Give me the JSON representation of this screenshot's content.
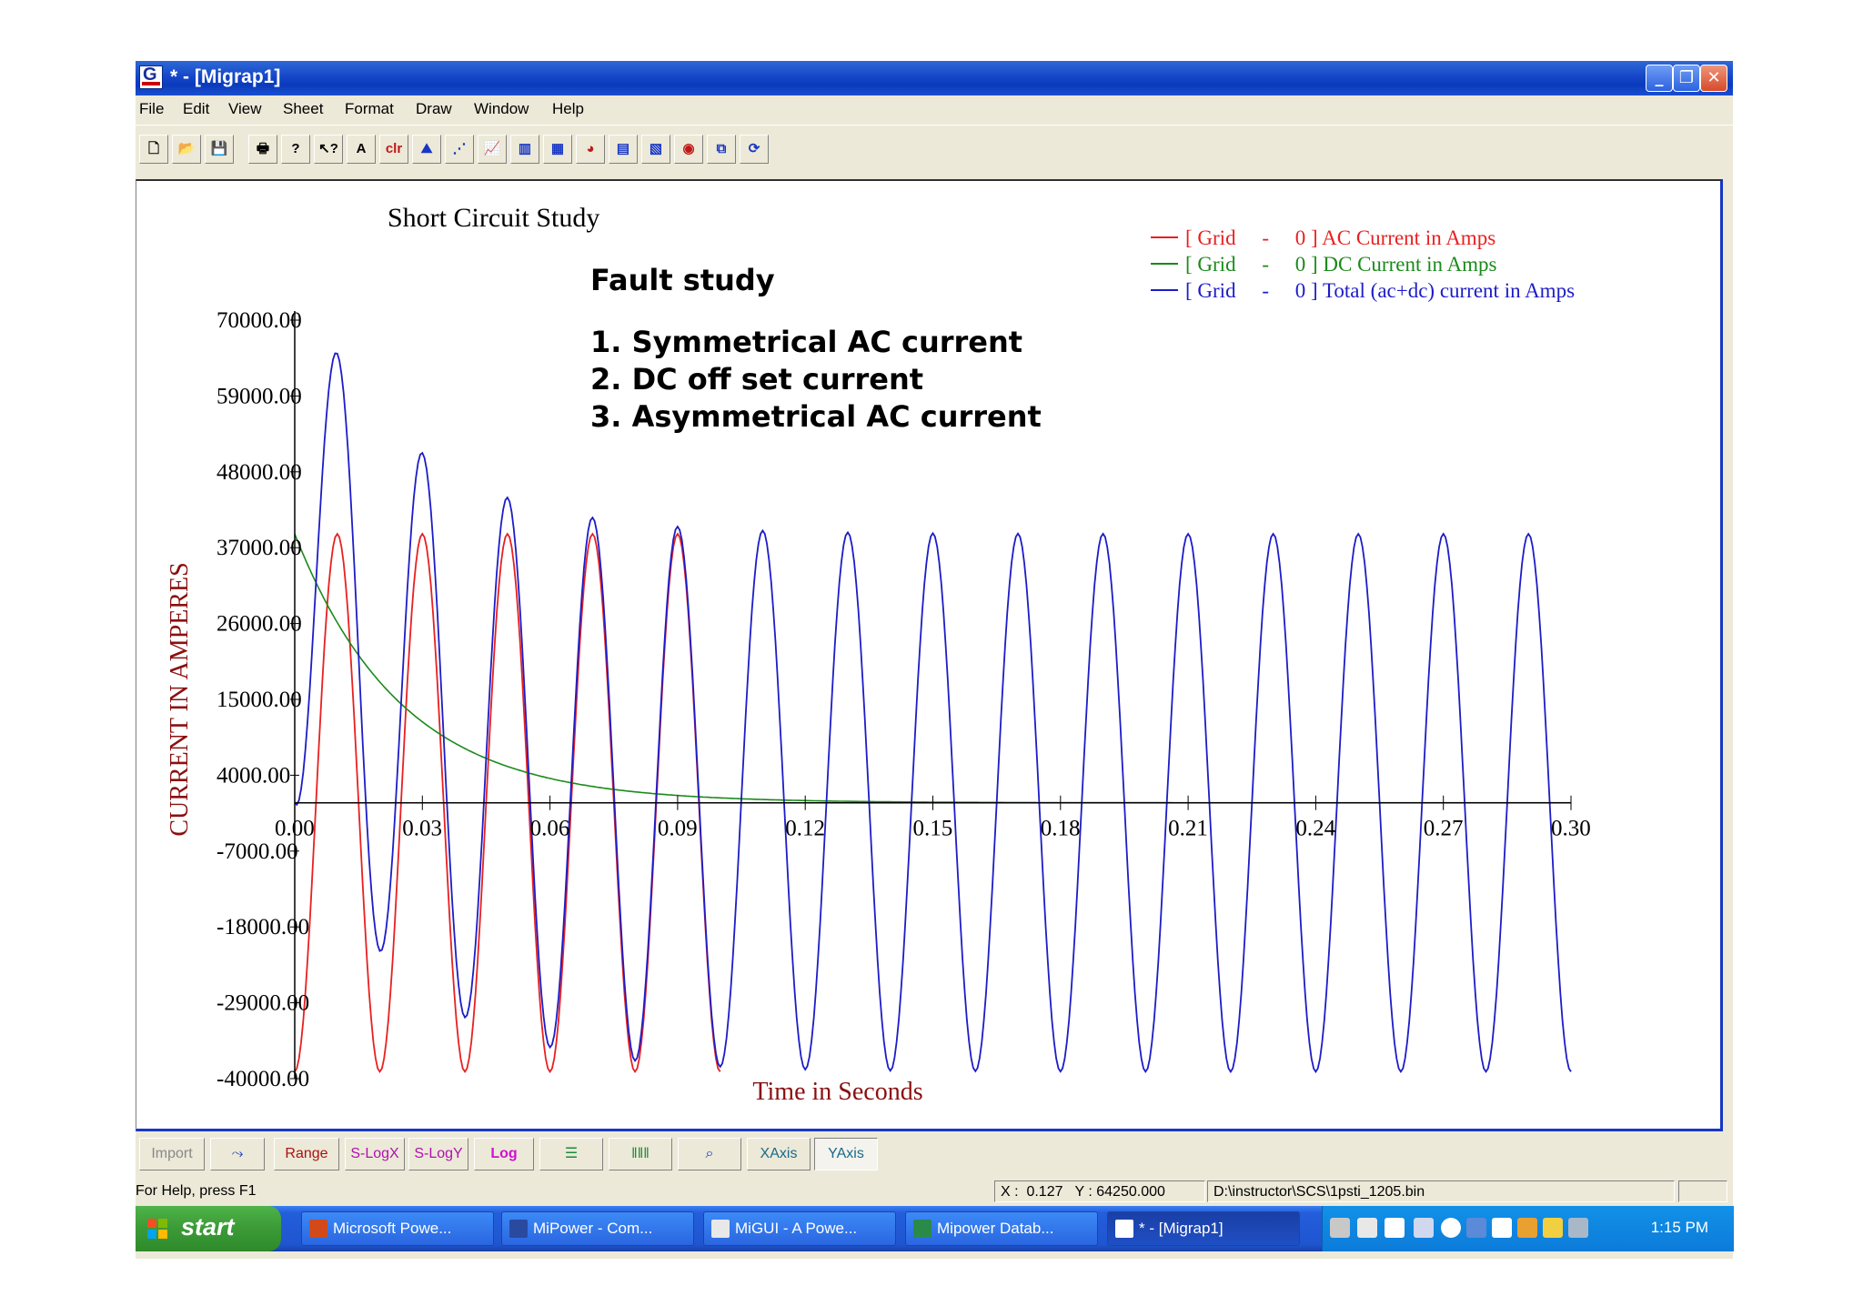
{
  "window": {
    "title": "* - [Migrap1]",
    "minimize": "_",
    "restore": "❐",
    "close": "✕"
  },
  "menu": [
    "File",
    "Edit",
    "View",
    "Sheet",
    "Format",
    "Draw",
    "Window",
    "Help"
  ],
  "toolbar": {
    "text_tool": "A",
    "clear_tool": "clr"
  },
  "annotation": {
    "heading": "Fault study",
    "items": [
      "1. Symmetrical AC current",
      "2. DC off set current",
      "3. Asymmetrical AC current"
    ]
  },
  "chart_data": {
    "type": "line",
    "title": "Short Circuit Study",
    "xlabel": "Time in Seconds",
    "ylabel": "CURRENT IN AMPERES",
    "xlim": [
      0,
      0.3
    ],
    "ylim": [
      -40000,
      70000
    ],
    "x_ticks": [
      "0.00",
      "0.03",
      "0.06",
      "0.09",
      "0.12",
      "0.15",
      "0.18",
      "0.21",
      "0.24",
      "0.27",
      "0.30"
    ],
    "y_ticks": [
      "70000.00",
      "59000.00",
      "48000.00",
      "37000.00",
      "26000.00",
      "15000.00",
      "4000.00",
      "-7000.00",
      "-18000.00",
      "-29000.00",
      "-40000.00"
    ],
    "grid": false,
    "legend_position": "top-right",
    "frequency_hz": 50,
    "ac_amplitude": 39000,
    "dc_initial": 39000,
    "dc_time_constant_s": 0.025,
    "x_step": 0.0005,
    "series": [
      {
        "name": "[ Grid     -     0 ] AC Current in Amps",
        "color": "#e82020",
        "kind": "ac",
        "x_end": 0.1
      },
      {
        "name": "[ Grid     -     0 ] DC Current in Amps",
        "color": "#1a8a1a",
        "kind": "dc",
        "x_end": 0.3
      },
      {
        "name": "[ Grid     -     0 ] Total (ac+dc) current in Amps",
        "color": "#1c1cc8",
        "kind": "total",
        "x_end": 0.3
      }
    ]
  },
  "bottom_buttons": {
    "import": "Import",
    "range": "Range",
    "slogx": "S-LogX",
    "slogy": "S-LogY",
    "log": "Log",
    "xaxis": "XAxis",
    "yaxis": "YAxis"
  },
  "status": {
    "help": "For Help, press F1",
    "coords": "X :  0.127   Y : 64250.000",
    "path": "D:\\instructor\\SCS\\1psti_1205.bin"
  },
  "taskbar": {
    "start": "start",
    "tasks": [
      "Microsoft Powe...",
      "MiPower - Com...",
      "MiGUI - A Powe...",
      "Mipower Datab...",
      "* - [Migrap1]"
    ],
    "clock": "1:15 PM"
  }
}
